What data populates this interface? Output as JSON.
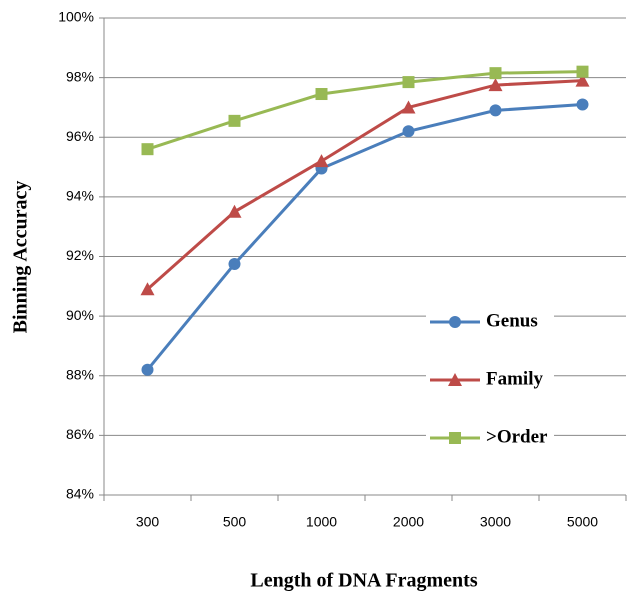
{
  "chart_data": {
    "type": "line",
    "y_label": "Binning Accuracy",
    "x_label": "Length of DNA Fragments",
    "categories": [
      "300",
      "500",
      "1000",
      "2000",
      "3000",
      "5000"
    ],
    "series": [
      {
        "name": "Genus",
        "color": "#4a7ebb",
        "marker": "circle",
        "values": [
          88.2,
          91.75,
          94.95,
          96.2,
          96.9,
          97.1
        ]
      },
      {
        "name": "Family",
        "color": "#be4b48",
        "marker": "triangle",
        "values": [
          90.9,
          93.5,
          95.2,
          97.0,
          97.75,
          97.9
        ]
      },
      {
        "name": ">Order",
        "color": "#98b954",
        "marker": "square",
        "values": [
          95.6,
          96.55,
          97.45,
          97.85,
          98.15,
          98.2
        ]
      }
    ],
    "ylim": [
      84,
      100
    ],
    "yticks": [
      {
        "value": 84,
        "label": "84%"
      },
      {
        "value": 86,
        "label": "86%"
      },
      {
        "value": 88,
        "label": "88%"
      },
      {
        "value": 90,
        "label": "90%"
      },
      {
        "value": 92,
        "label": "92%"
      },
      {
        "value": 94,
        "label": "94%"
      },
      {
        "value": 96,
        "label": "96%"
      },
      {
        "value": 98,
        "label": "98%"
      },
      {
        "value": 100,
        "label": "100%"
      }
    ],
    "grid": true,
    "legend": "lower right"
  }
}
